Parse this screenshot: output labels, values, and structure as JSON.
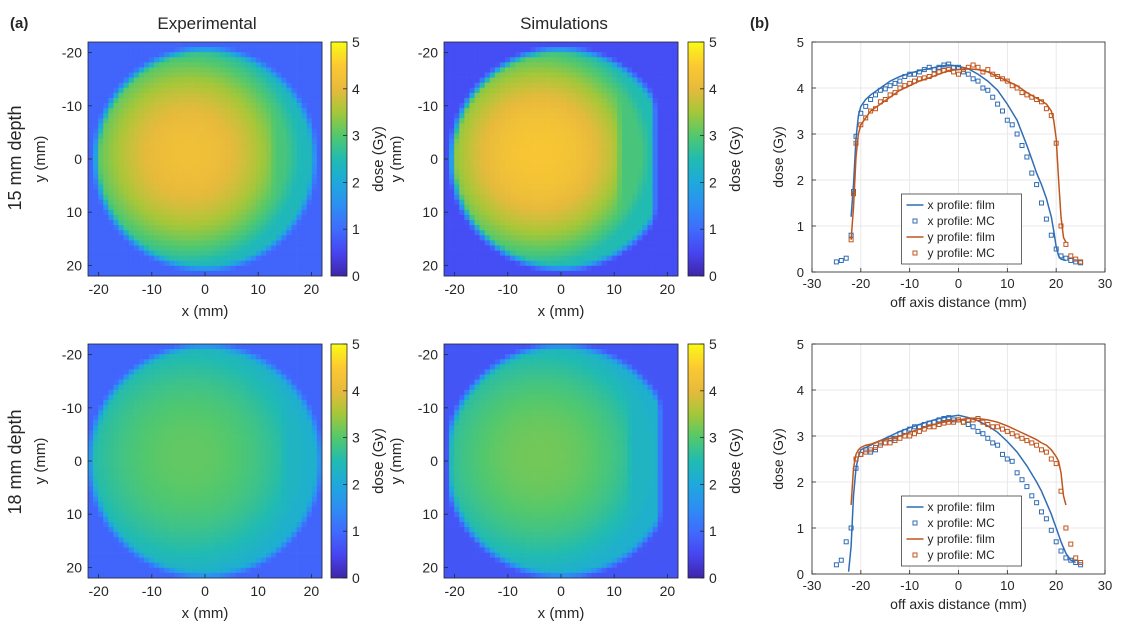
{
  "panel_labels": {
    "a": "(a)",
    "b": "(b)"
  },
  "column_titles": {
    "experimental": "Experimental",
    "simulations": "Simulations"
  },
  "row_labels": {
    "row1": "15 mm depth",
    "row2": "18 mm depth"
  },
  "colors": {
    "film_x": "#2f6db5",
    "mc_x": "#2f6db5",
    "film_y": "#c0561e",
    "mc_y": "#c0561e",
    "grid": "#e3e3e3",
    "axis": "#262626"
  },
  "chart_data": [
    {
      "id": "map-exp-15",
      "type": "heatmap",
      "title": "Experimental",
      "xlabel": "x (mm)",
      "ylabel": "y (mm)",
      "colorbar_label": "dose (Gy)",
      "xlim": [
        -22,
        22
      ],
      "ylim": [
        -22,
        22
      ],
      "clim": [
        0,
        5
      ],
      "xticks": [
        -20,
        -10,
        0,
        10,
        20
      ],
      "yticks": [
        -20,
        -10,
        0,
        10,
        20
      ],
      "cticks": [
        0,
        1,
        2,
        3,
        4,
        5
      ],
      "field_radius_mm": 21,
      "field_clip_x_mm": [
        -21,
        21
      ],
      "center_mm": [
        -3,
        -1
      ],
      "peak_dose_gy": 4.2,
      "edge_dose_gy": 2.4,
      "background_dose_gy": 0.9,
      "right_low_band_from_x_mm": 12,
      "right_low_band_dose_gy": 2.9
    },
    {
      "id": "map-sim-15",
      "type": "heatmap",
      "title": "Simulations",
      "xlabel": "x (mm)",
      "ylabel": "y (mm)",
      "colorbar_label": "dose (Gy)",
      "xlim": [
        -22,
        22
      ],
      "ylim": [
        -22,
        22
      ],
      "clim": [
        0,
        5
      ],
      "xticks": [
        -20,
        -10,
        0,
        10,
        20
      ],
      "yticks": [
        -20,
        -10,
        0,
        10,
        20
      ],
      "cticks": [
        0,
        1,
        2,
        3,
        4,
        5
      ],
      "field_radius_mm": 21,
      "field_clip_x_mm": [
        -21,
        17.5
      ],
      "center_mm": [
        -4,
        -1
      ],
      "peak_dose_gy": 4.4,
      "edge_dose_gy": 2.5,
      "background_dose_gy": 0.6,
      "right_low_band_from_x_mm": 10,
      "right_low_band_dose_gy": 2.9
    },
    {
      "id": "map-exp-18",
      "type": "heatmap",
      "xlabel": "x (mm)",
      "ylabel": "y (mm)",
      "colorbar_label": "dose (Gy)",
      "xlim": [
        -22,
        22
      ],
      "ylim": [
        -22,
        22
      ],
      "clim": [
        0,
        5
      ],
      "xticks": [
        -20,
        -10,
        0,
        10,
        20
      ],
      "yticks": [
        -20,
        -10,
        0,
        10,
        20
      ],
      "cticks": [
        0,
        1,
        2,
        3,
        4,
        5
      ],
      "field_radius_mm": 22,
      "field_clip_x_mm": [
        -22,
        22
      ],
      "center_mm": [
        -3,
        -1
      ],
      "peak_dose_gy": 3.1,
      "edge_dose_gy": 2.2,
      "background_dose_gy": 0.9,
      "right_low_band_from_x_mm": 14,
      "right_low_band_dose_gy": 2.3
    },
    {
      "id": "map-sim-18",
      "type": "heatmap",
      "xlabel": "x (mm)",
      "ylabel": "y (mm)",
      "colorbar_label": "dose (Gy)",
      "xlim": [
        -22,
        22
      ],
      "ylim": [
        -22,
        22
      ],
      "clim": [
        0,
        5
      ],
      "xticks": [
        -20,
        -10,
        0,
        10,
        20
      ],
      "yticks": [
        -20,
        -10,
        0,
        10,
        20
      ],
      "cticks": [
        0,
        1,
        2,
        3,
        4,
        5
      ],
      "field_radius_mm": 22,
      "field_clip_x_mm": [
        -21,
        18.5
      ],
      "center_mm": [
        -4,
        -1
      ],
      "peak_dose_gy": 3.2,
      "edge_dose_gy": 2.2,
      "background_dose_gy": 0.7,
      "right_low_band_from_x_mm": 12,
      "right_low_band_dose_gy": 2.3
    },
    {
      "id": "profile-15",
      "type": "line",
      "xlabel": "off axis distance (mm)",
      "ylabel": "dose (Gy)",
      "xlim": [
        -30,
        30
      ],
      "ylim": [
        0,
        5
      ],
      "grid": true,
      "xticks": [
        -30,
        -20,
        -10,
        0,
        10,
        20,
        30
      ],
      "yticks": [
        0,
        1,
        2,
        3,
        4,
        5
      ],
      "legend_position": "lower-center",
      "series": [
        {
          "name": "x profile: film",
          "style": "line",
          "color_key": "film_x",
          "x": [
            -22,
            -21.5,
            -21,
            -20.5,
            -20,
            -19,
            -18,
            -16,
            -14,
            -12,
            -10,
            -8,
            -6,
            -4,
            -2,
            0,
            2,
            4,
            6,
            8,
            10,
            12,
            14,
            15,
            16,
            17,
            18,
            18.5,
            19,
            19.5,
            20,
            20.5,
            21,
            22
          ],
          "y": [
            1.2,
            1.9,
            2.9,
            3.4,
            3.6,
            3.75,
            3.85,
            4.0,
            4.15,
            4.25,
            4.32,
            4.38,
            4.42,
            4.47,
            4.5,
            4.47,
            4.42,
            4.3,
            4.15,
            3.95,
            3.65,
            3.3,
            2.75,
            2.45,
            2.15,
            1.9,
            1.6,
            1.4,
            1.2,
            0.9,
            0.55,
            0.35,
            0.28,
            0.25
          ]
        },
        {
          "name": "x profile: MC",
          "style": "square",
          "color_key": "mc_x",
          "x": [
            -25,
            -24,
            -23,
            -22,
            -21.5,
            -21,
            -20,
            -19,
            -18,
            -17,
            -16,
            -15,
            -14,
            -13,
            -12,
            -11,
            -10,
            -9,
            -8,
            -7,
            -6,
            -5,
            -4,
            -3,
            -2,
            -1,
            0,
            1,
            2,
            3,
            4,
            5,
            6,
            7,
            8,
            9,
            10,
            11,
            12,
            13,
            14,
            15,
            16,
            17,
            18,
            19,
            20,
            21,
            22,
            23,
            24,
            25
          ],
          "y": [
            0.22,
            0.25,
            0.3,
            0.8,
            1.75,
            2.95,
            3.45,
            3.6,
            3.75,
            3.85,
            3.95,
            3.98,
            4.05,
            4.1,
            4.15,
            4.25,
            4.3,
            4.3,
            4.35,
            4.4,
            4.45,
            4.4,
            4.45,
            4.5,
            4.52,
            4.45,
            4.45,
            4.35,
            4.3,
            4.2,
            4.15,
            4.0,
            3.95,
            3.8,
            3.65,
            3.5,
            3.3,
            3.2,
            3.0,
            2.75,
            2.5,
            2.15,
            1.9,
            1.5,
            1.15,
            0.8,
            0.5,
            0.35,
            0.3,
            0.25,
            0.22,
            0.2
          ]
        },
        {
          "name": "y profile: film",
          "style": "line",
          "color_key": "film_y",
          "x": [
            -22,
            -21.5,
            -21,
            -20.5,
            -20,
            -19,
            -18,
            -16,
            -14,
            -12,
            -10,
            -8,
            -6,
            -4,
            -2,
            0,
            2,
            4,
            6,
            8,
            10,
            12,
            14,
            16,
            17,
            18,
            19,
            19.5,
            20,
            20.5,
            21,
            21.5,
            22
          ],
          "y": [
            0.7,
            1.4,
            2.5,
            3.0,
            3.2,
            3.35,
            3.5,
            3.65,
            3.8,
            3.95,
            4.05,
            4.15,
            4.22,
            4.3,
            4.38,
            4.4,
            4.42,
            4.4,
            4.35,
            4.25,
            4.15,
            4.05,
            3.9,
            3.78,
            3.72,
            3.65,
            3.5,
            3.3,
            2.9,
            2.0,
            1.2,
            0.75,
            0.65
          ]
        },
        {
          "name": "y profile: MC",
          "style": "square",
          "color_key": "mc_y",
          "x": [
            -22,
            -21.5,
            -21,
            -20,
            -19,
            -18,
            -17,
            -16,
            -15,
            -14,
            -13,
            -12,
            -11,
            -10,
            -9,
            -8,
            -7,
            -6,
            -5,
            -4,
            -3,
            -2,
            -1,
            0,
            1,
            2,
            3,
            4,
            5,
            6,
            7,
            8,
            9,
            10,
            11,
            12,
            13,
            14,
            15,
            16,
            17,
            18,
            19,
            20,
            21,
            22,
            23,
            24,
            25
          ],
          "y": [
            0.7,
            1.7,
            2.8,
            3.2,
            3.35,
            3.5,
            3.55,
            3.7,
            3.75,
            3.85,
            3.9,
            4.0,
            4.05,
            4.1,
            4.15,
            4.2,
            4.22,
            4.25,
            4.3,
            4.35,
            4.38,
            4.4,
            4.35,
            4.3,
            4.4,
            4.45,
            4.5,
            4.45,
            4.35,
            4.4,
            4.3,
            4.25,
            4.2,
            4.15,
            4.05,
            4.0,
            3.9,
            3.85,
            3.8,
            3.75,
            3.7,
            3.55,
            3.4,
            2.8,
            1.0,
            0.6,
            0.35,
            0.28,
            0.22
          ]
        }
      ]
    },
    {
      "id": "profile-18",
      "type": "line",
      "xlabel": "off axis distance (mm)",
      "ylabel": "dose (Gy)",
      "xlim": [
        -30,
        30
      ],
      "ylim": [
        0,
        5
      ],
      "grid": true,
      "xticks": [
        -30,
        -20,
        -10,
        0,
        10,
        20,
        30
      ],
      "yticks": [
        0,
        1,
        2,
        3,
        4,
        5
      ],
      "legend_position": "lower-center",
      "series": [
        {
          "name": "x profile: film",
          "style": "line",
          "color_key": "film_x",
          "x": [
            -22.5,
            -22,
            -21.5,
            -21,
            -20.5,
            -20,
            -19,
            -18,
            -16,
            -14,
            -12,
            -10,
            -8,
            -6,
            -4,
            -2,
            0,
            2,
            4,
            6,
            8,
            10,
            12,
            14,
            16,
            17,
            18,
            19,
            19.5,
            20,
            20.5,
            21,
            22,
            23,
            24
          ],
          "y": [
            0.05,
            0.6,
            1.7,
            2.3,
            2.55,
            2.7,
            2.75,
            2.8,
            2.9,
            3.0,
            3.1,
            3.18,
            3.25,
            3.32,
            3.38,
            3.42,
            3.45,
            3.4,
            3.33,
            3.22,
            3.08,
            2.88,
            2.65,
            2.35,
            2.0,
            1.8,
            1.55,
            1.3,
            1.15,
            1.0,
            0.85,
            0.7,
            0.45,
            0.3,
            0.25
          ]
        },
        {
          "name": "x profile: MC",
          "style": "square",
          "color_key": "mc_x",
          "x": [
            -25,
            -24,
            -23,
            -22,
            -21,
            -20,
            -19,
            -18,
            -17,
            -16,
            -15,
            -14,
            -13,
            -12,
            -11,
            -10,
            -9,
            -8,
            -7,
            -6,
            -5,
            -4,
            -3,
            -2,
            -1,
            0,
            1,
            2,
            3,
            4,
            5,
            6,
            7,
            8,
            9,
            10,
            11,
            12,
            13,
            14,
            15,
            16,
            17,
            18,
            19,
            20,
            21,
            22,
            23,
            24,
            25
          ],
          "y": [
            0.2,
            0.3,
            0.7,
            1.0,
            2.3,
            2.6,
            2.7,
            2.65,
            2.7,
            2.85,
            2.85,
            2.95,
            2.95,
            3.05,
            3.1,
            3.15,
            3.2,
            3.2,
            3.25,
            3.28,
            3.3,
            3.35,
            3.38,
            3.4,
            3.35,
            3.35,
            3.3,
            3.25,
            3.2,
            3.1,
            3.05,
            2.95,
            2.85,
            2.8,
            2.6,
            2.5,
            2.45,
            2.2,
            2.05,
            1.9,
            1.7,
            1.55,
            1.35,
            1.2,
            0.95,
            0.7,
            0.5,
            0.35,
            0.3,
            0.25,
            0.2
          ]
        },
        {
          "name": "y profile: film",
          "style": "line",
          "color_key": "film_y",
          "x": [
            -22,
            -21.5,
            -21,
            -20.5,
            -20,
            -19,
            -18,
            -16,
            -14,
            -12,
            -10,
            -8,
            -6,
            -4,
            -2,
            0,
            2,
            4,
            6,
            8,
            10,
            12,
            14,
            16,
            17,
            18,
            19,
            20,
            20.5,
            21,
            21.5,
            22
          ],
          "y": [
            1.5,
            2.3,
            2.6,
            2.7,
            2.75,
            2.8,
            2.82,
            2.9,
            2.95,
            3.0,
            3.08,
            3.15,
            3.22,
            3.28,
            3.32,
            3.35,
            3.38,
            3.38,
            3.35,
            3.3,
            3.22,
            3.12,
            3.02,
            2.92,
            2.85,
            2.8,
            2.7,
            2.55,
            2.45,
            2.2,
            1.7,
            1.5
          ]
        },
        {
          "name": "y profile: MC",
          "style": "square",
          "color_key": "mc_y",
          "x": [
            -21,
            -20,
            -19,
            -18,
            -17,
            -16,
            -15,
            -14,
            -13,
            -12,
            -11,
            -10,
            -9,
            -8,
            -7,
            -6,
            -5,
            -4,
            -3,
            -2,
            -1,
            0,
            1,
            2,
            3,
            4,
            5,
            6,
            7,
            8,
            9,
            10,
            11,
            12,
            13,
            14,
            15,
            16,
            17,
            18,
            19,
            20,
            21,
            22,
            23,
            24,
            25
          ],
          "y": [
            2.5,
            2.6,
            2.65,
            2.7,
            2.75,
            2.8,
            2.85,
            2.85,
            2.9,
            2.95,
            3.0,
            3.0,
            3.05,
            3.1,
            3.15,
            3.2,
            3.2,
            3.25,
            3.28,
            3.3,
            3.3,
            3.35,
            3.3,
            3.35,
            3.35,
            3.38,
            3.3,
            3.25,
            3.2,
            3.2,
            3.15,
            3.1,
            3.05,
            3.0,
            2.95,
            2.9,
            2.85,
            2.8,
            2.7,
            2.65,
            2.5,
            2.4,
            1.8,
            1.0,
            0.65,
            0.35,
            0.25
          ]
        }
      ]
    }
  ]
}
